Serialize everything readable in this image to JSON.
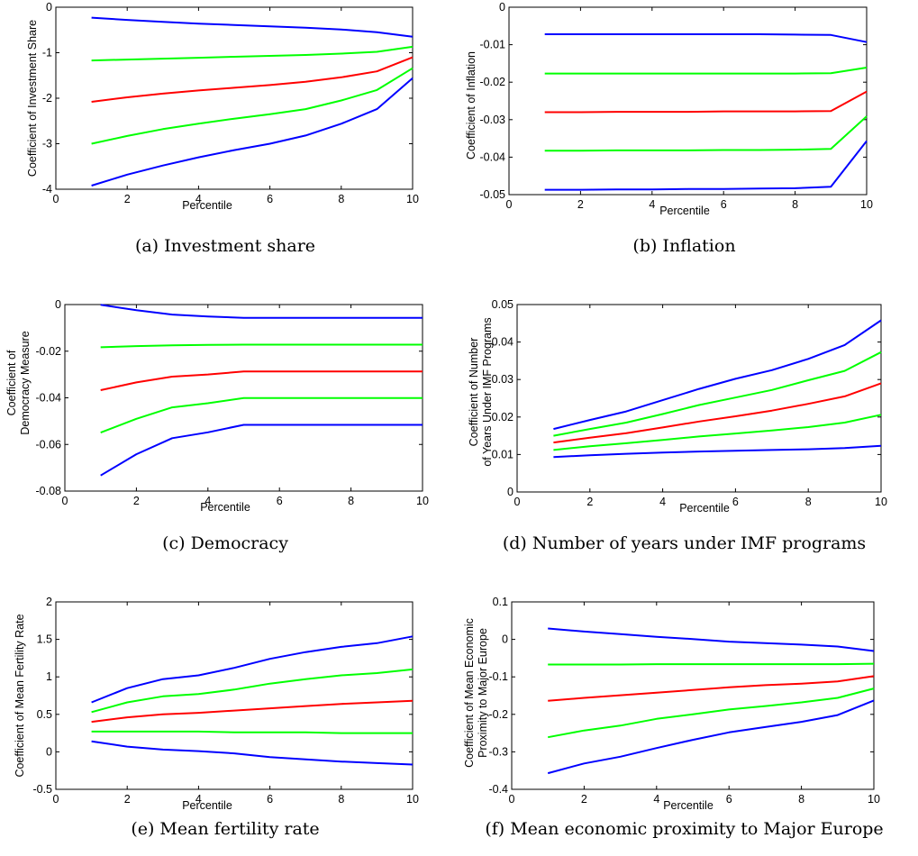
{
  "colors": {
    "outer": "#0000ff",
    "middle": "#00ff00",
    "center": "#ff0000"
  },
  "chart_data": [
    {
      "type": "line",
      "caption": "(a) Investment share",
      "xlabel": "Percentile",
      "ylabel": [
        "Coefficient of Investment Share"
      ],
      "xlim": [
        0,
        10
      ],
      "ylim": [
        -4,
        0
      ],
      "xticks": [
        0,
        2,
        4,
        6,
        8,
        10
      ],
      "yticks": [
        -4,
        -3,
        -2,
        -1,
        0
      ],
      "ytick_labels": [
        "-4",
        "-3",
        "-2",
        "-1",
        "0"
      ],
      "x": [
        1,
        2,
        3,
        4,
        5,
        6,
        7,
        8,
        9,
        10
      ],
      "series": [
        {
          "color": "outer",
          "values": [
            -0.23,
            -0.28,
            -0.32,
            -0.36,
            -0.39,
            -0.42,
            -0.45,
            -0.49,
            -0.55,
            -0.65
          ]
        },
        {
          "color": "middle",
          "values": [
            -1.17,
            -1.15,
            -1.13,
            -1.11,
            -1.09,
            -1.07,
            -1.05,
            -1.02,
            -0.98,
            -0.87
          ]
        },
        {
          "color": "center",
          "values": [
            -2.08,
            -1.98,
            -1.9,
            -1.83,
            -1.77,
            -1.71,
            -1.64,
            -1.54,
            -1.41,
            -1.1
          ]
        },
        {
          "color": "middle",
          "values": [
            -3.0,
            -2.83,
            -2.68,
            -2.56,
            -2.45,
            -2.35,
            -2.24,
            -2.05,
            -1.82,
            -1.34
          ]
        },
        {
          "color": "outer",
          "values": [
            -3.92,
            -3.68,
            -3.48,
            -3.3,
            -3.14,
            -3.0,
            -2.82,
            -2.56,
            -2.24,
            -1.56
          ]
        }
      ]
    },
    {
      "type": "line",
      "caption": "(b) Inflation",
      "xlabel": "Percentile",
      "ylabel": [
        "Coefficient of Inflation"
      ],
      "xlim": [
        0,
        10
      ],
      "ylim": [
        -0.05,
        0
      ],
      "xticks": [
        0,
        2,
        4,
        6,
        8,
        10
      ],
      "yticks": [
        -0.05,
        -0.04,
        -0.03,
        -0.02,
        -0.01,
        0
      ],
      "ytick_labels": [
        "-0.05",
        "-0.04",
        "-0.03",
        "-0.02",
        "-0.01",
        "0"
      ],
      "x": [
        1,
        2,
        3,
        4,
        5,
        6,
        7,
        8,
        9,
        10
      ],
      "series": [
        {
          "color": "outer",
          "values": [
            -0.0072,
            -0.0072,
            -0.0072,
            -0.0072,
            -0.0072,
            -0.0072,
            -0.0072,
            -0.0073,
            -0.0074,
            -0.0093
          ]
        },
        {
          "color": "middle",
          "values": [
            -0.0177,
            -0.0177,
            -0.0177,
            -0.0177,
            -0.0177,
            -0.0177,
            -0.0177,
            -0.0177,
            -0.0176,
            -0.0161
          ]
        },
        {
          "color": "center",
          "values": [
            -0.028,
            -0.028,
            -0.0279,
            -0.0279,
            -0.0279,
            -0.0278,
            -0.0278,
            -0.0278,
            -0.0277,
            -0.0225
          ]
        },
        {
          "color": "middle",
          "values": [
            -0.0383,
            -0.0383,
            -0.0382,
            -0.0382,
            -0.0382,
            -0.0381,
            -0.0381,
            -0.038,
            -0.0378,
            -0.0291
          ]
        },
        {
          "color": "outer",
          "values": [
            -0.0487,
            -0.0487,
            -0.0486,
            -0.0486,
            -0.0485,
            -0.0485,
            -0.0484,
            -0.0483,
            -0.0479,
            -0.0357
          ]
        }
      ]
    },
    {
      "type": "line",
      "caption": "(c) Democracy",
      "xlabel": "Percentile",
      "ylabel": [
        "Coefficient of",
        "Democracy Measure"
      ],
      "xlim": [
        0,
        10
      ],
      "ylim": [
        -0.08,
        0
      ],
      "xticks": [
        0,
        2,
        4,
        6,
        8,
        10
      ],
      "yticks": [
        -0.08,
        -0.06,
        -0.04,
        -0.02,
        0
      ],
      "ytick_labels": [
        "-0.08",
        "-0.06",
        "-0.04",
        "-0.02",
        "0"
      ],
      "x": [
        1,
        2,
        3,
        4,
        5,
        6,
        7,
        8,
        9,
        10
      ],
      "series": [
        {
          "color": "outer",
          "values": [
            -0.0001,
            -0.0024,
            -0.0043,
            -0.0051,
            -0.0057,
            -0.0057,
            -0.0057,
            -0.0057,
            -0.0057,
            -0.0057
          ]
        },
        {
          "color": "middle",
          "values": [
            -0.0183,
            -0.0178,
            -0.0175,
            -0.0173,
            -0.0172,
            -0.0172,
            -0.0172,
            -0.0172,
            -0.0172,
            -0.0172
          ]
        },
        {
          "color": "center",
          "values": [
            -0.0367,
            -0.0334,
            -0.0309,
            -0.03,
            -0.0287,
            -0.0287,
            -0.0287,
            -0.0287,
            -0.0287,
            -0.0287
          ]
        },
        {
          "color": "middle",
          "values": [
            -0.0549,
            -0.049,
            -0.0441,
            -0.0423,
            -0.0401,
            -0.0401,
            -0.0401,
            -0.0401,
            -0.0401,
            -0.0401
          ]
        },
        {
          "color": "outer",
          "values": [
            -0.0733,
            -0.0642,
            -0.0573,
            -0.0548,
            -0.0516,
            -0.0516,
            -0.0516,
            -0.0516,
            -0.0516,
            -0.0516
          ]
        }
      ]
    },
    {
      "type": "line",
      "caption": "(d) Number of years under IMF programs",
      "xlabel": "Percentile",
      "ylabel": [
        "Coefficient of Number",
        "of Years Under IMF Programs"
      ],
      "xlim": [
        0,
        10
      ],
      "ylim": [
        0,
        0.05
      ],
      "xticks": [
        0,
        2,
        4,
        6,
        8,
        10
      ],
      "yticks": [
        0,
        0.01,
        0.02,
        0.03,
        0.04,
        0.05
      ],
      "ytick_labels": [
        "0",
        "0.01",
        "0.02",
        "0.03",
        "0.04",
        "0.05"
      ],
      "x": [
        1,
        2,
        3,
        4,
        5,
        6,
        7,
        8,
        9,
        10
      ],
      "series": [
        {
          "color": "outer",
          "values": [
            0.0168,
            0.0192,
            0.0215,
            0.0245,
            0.0275,
            0.0302,
            0.0325,
            0.0355,
            0.0392,
            0.0458
          ]
        },
        {
          "color": "middle",
          "values": [
            0.015,
            0.0168,
            0.0185,
            0.0208,
            0.0232,
            0.0252,
            0.0272,
            0.0298,
            0.0323,
            0.0373
          ]
        },
        {
          "color": "center",
          "values": [
            0.0132,
            0.0145,
            0.0157,
            0.0172,
            0.0188,
            0.0202,
            0.0217,
            0.0235,
            0.0255,
            0.029
          ]
        },
        {
          "color": "middle",
          "values": [
            0.0112,
            0.0122,
            0.013,
            0.0139,
            0.0148,
            0.0156,
            0.0164,
            0.0173,
            0.0185,
            0.0206
          ]
        },
        {
          "color": "outer",
          "values": [
            0.0093,
            0.0098,
            0.0102,
            0.0105,
            0.0108,
            0.011,
            0.0112,
            0.0114,
            0.0117,
            0.0123
          ]
        }
      ]
    },
    {
      "type": "line",
      "caption": "(e) Mean fertility rate",
      "xlabel": "Percentile",
      "ylabel": [
        "Coefficient of Mean Fertility Rate"
      ],
      "xlim": [
        0,
        10
      ],
      "ylim": [
        -0.5,
        2
      ],
      "xticks": [
        0,
        2,
        4,
        6,
        8,
        10
      ],
      "yticks": [
        -0.5,
        0,
        0.5,
        1,
        1.5,
        2
      ],
      "ytick_labels": [
        "-0.5",
        "0",
        "0.5",
        "1",
        "1.5",
        "2"
      ],
      "x": [
        1,
        2,
        3,
        4,
        5,
        6,
        7,
        8,
        9,
        10
      ],
      "series": [
        {
          "color": "outer",
          "values": [
            0.66,
            0.85,
            0.97,
            1.02,
            1.12,
            1.24,
            1.33,
            1.4,
            1.45,
            1.54
          ]
        },
        {
          "color": "middle",
          "values": [
            0.53,
            0.66,
            0.74,
            0.77,
            0.83,
            0.91,
            0.97,
            1.02,
            1.05,
            1.1
          ]
        },
        {
          "color": "center",
          "values": [
            0.4,
            0.46,
            0.5,
            0.52,
            0.55,
            0.58,
            0.61,
            0.64,
            0.66,
            0.68
          ]
        },
        {
          "color": "middle",
          "values": [
            0.27,
            0.27,
            0.27,
            0.27,
            0.26,
            0.26,
            0.26,
            0.25,
            0.25,
            0.25
          ]
        },
        {
          "color": "outer",
          "values": [
            0.14,
            0.07,
            0.03,
            0.01,
            -0.02,
            -0.07,
            -0.1,
            -0.13,
            -0.15,
            -0.17
          ]
        }
      ]
    },
    {
      "type": "line",
      "caption": "(f) Mean economic proximity to Major Europe",
      "xlabel": "Percentile",
      "ylabel": [
        "Coefficient of Mean Economic",
        "Proximity to Major Europe"
      ],
      "xlim": [
        0,
        10
      ],
      "ylim": [
        -0.4,
        0.1
      ],
      "xticks": [
        0,
        2,
        4,
        6,
        8,
        10
      ],
      "yticks": [
        -0.4,
        -0.3,
        -0.2,
        -0.1,
        0,
        0.1
      ],
      "ytick_labels": [
        "-0.4",
        "-0.3",
        "-0.2",
        "-0.1",
        "0",
        "0.1"
      ],
      "x": [
        1,
        2,
        3,
        4,
        5,
        6,
        7,
        8,
        9,
        10
      ],
      "series": [
        {
          "color": "outer",
          "values": [
            0.029,
            0.021,
            0.014,
            0.007,
            0.001,
            -0.006,
            -0.01,
            -0.014,
            -0.019,
            -0.031
          ]
        },
        {
          "color": "middle",
          "values": [
            -0.067,
            -0.067,
            -0.067,
            -0.066,
            -0.066,
            -0.066,
            -0.066,
            -0.066,
            -0.066,
            -0.065
          ]
        },
        {
          "color": "center",
          "values": [
            -0.164,
            -0.156,
            -0.149,
            -0.142,
            -0.135,
            -0.128,
            -0.122,
            -0.118,
            -0.112,
            -0.098
          ]
        },
        {
          "color": "middle",
          "values": [
            -0.261,
            -0.243,
            -0.23,
            -0.212,
            -0.2,
            -0.187,
            -0.178,
            -0.168,
            -0.156,
            -0.131
          ]
        },
        {
          "color": "outer",
          "values": [
            -0.357,
            -0.331,
            -0.313,
            -0.29,
            -0.268,
            -0.248,
            -0.234,
            -0.22,
            -0.202,
            -0.163
          ]
        }
      ]
    }
  ]
}
